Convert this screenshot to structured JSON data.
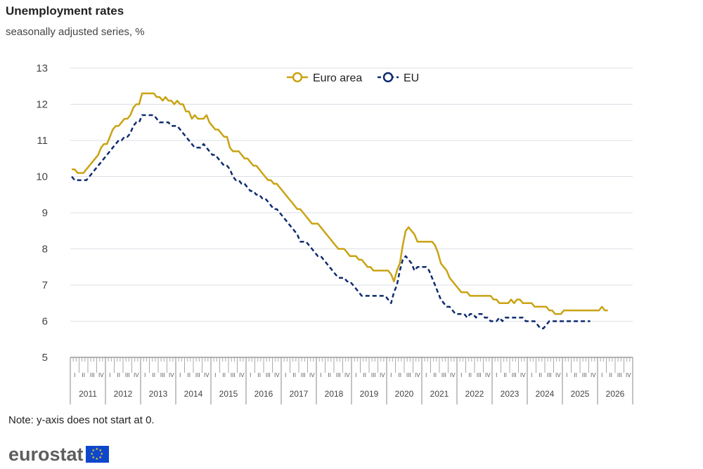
{
  "header": {
    "title": "Unemployment rates",
    "subtitle": "seasonally adjusted series, %"
  },
  "footer": {
    "note": "Note: y-axis does not start at 0.",
    "logo_text": "eurostat"
  },
  "colors": {
    "euro_area": "#c9a312",
    "eu": "#0e2c6e",
    "grid": "#dcdfe6",
    "axis_text": "#444444"
  },
  "chart_data": {
    "type": "line",
    "title": "Unemployment rates",
    "subtitle": "seasonally adjusted series, %",
    "ylim": [
      5,
      13
    ],
    "yticks": [
      5,
      6,
      7,
      8,
      9,
      10,
      11,
      12,
      13
    ],
    "grid": true,
    "legend_position": "top-center",
    "quarter_labels": [
      "I",
      "II",
      "III",
      "IV"
    ],
    "years": [
      "2011",
      "2012",
      "2013",
      "2014",
      "2015",
      "2016",
      "2017",
      "2018",
      "2019",
      "2020",
      "2021",
      "2022",
      "2023",
      "2024",
      "2025",
      "2026"
    ],
    "x_start": "2011-01",
    "series": [
      {
        "name": "Euro area",
        "style": "solid",
        "color": "#c9a312",
        "values": [
          10.2,
          10.2,
          10.1,
          10.1,
          10.1,
          10.2,
          10.3,
          10.4,
          10.5,
          10.6,
          10.8,
          10.9,
          10.9,
          11.1,
          11.3,
          11.4,
          11.4,
          11.5,
          11.6,
          11.6,
          11.7,
          11.9,
          12.0,
          12.0,
          12.3,
          12.3,
          12.3,
          12.3,
          12.3,
          12.2,
          12.2,
          12.1,
          12.2,
          12.1,
          12.1,
          12.0,
          12.1,
          12.0,
          12.0,
          11.8,
          11.8,
          11.6,
          11.7,
          11.6,
          11.6,
          11.6,
          11.7,
          11.5,
          11.4,
          11.3,
          11.3,
          11.2,
          11.1,
          11.1,
          10.8,
          10.7,
          10.7,
          10.7,
          10.6,
          10.5,
          10.5,
          10.4,
          10.3,
          10.3,
          10.2,
          10.1,
          10.0,
          9.9,
          9.9,
          9.8,
          9.8,
          9.7,
          9.6,
          9.5,
          9.4,
          9.3,
          9.2,
          9.1,
          9.1,
          9.0,
          8.9,
          8.8,
          8.7,
          8.7,
          8.7,
          8.6,
          8.5,
          8.4,
          8.3,
          8.2,
          8.1,
          8.0,
          8.0,
          8.0,
          7.9,
          7.8,
          7.8,
          7.8,
          7.7,
          7.7,
          7.6,
          7.5,
          7.5,
          7.4,
          7.4,
          7.4,
          7.4,
          7.4,
          7.4,
          7.3,
          7.1,
          7.4,
          7.6,
          8.1,
          8.5,
          8.6,
          8.5,
          8.4,
          8.2,
          8.2,
          8.2,
          8.2,
          8.2,
          8.2,
          8.1,
          7.9,
          7.6,
          7.5,
          7.4,
          7.2,
          7.1,
          7.0,
          6.9,
          6.8,
          6.8,
          6.8,
          6.7,
          6.7,
          6.7,
          6.7,
          6.7,
          6.7,
          6.7,
          6.7,
          6.6,
          6.6,
          6.5,
          6.5,
          6.5,
          6.5,
          6.6,
          6.5,
          6.6,
          6.6,
          6.5,
          6.5,
          6.5,
          6.5,
          6.4,
          6.4,
          6.4,
          6.4,
          6.4,
          6.3,
          6.3,
          6.2,
          6.2,
          6.2,
          6.3,
          6.3,
          6.3,
          6.3,
          6.3,
          6.3,
          6.3,
          6.3,
          6.3,
          6.3,
          6.3,
          6.3,
          6.3,
          6.4,
          6.3,
          6.3
        ]
      },
      {
        "name": "EU",
        "style": "dashed",
        "color": "#0e2c6e",
        "values": [
          10.0,
          9.9,
          9.9,
          9.9,
          9.9,
          9.9,
          10.0,
          10.1,
          10.2,
          10.3,
          10.4,
          10.5,
          10.6,
          10.7,
          10.8,
          10.9,
          11.0,
          11.0,
          11.1,
          11.1,
          11.2,
          11.4,
          11.5,
          11.5,
          11.7,
          11.7,
          11.7,
          11.7,
          11.7,
          11.6,
          11.5,
          11.5,
          11.5,
          11.5,
          11.4,
          11.4,
          11.4,
          11.3,
          11.2,
          11.1,
          11.0,
          10.9,
          10.8,
          10.8,
          10.8,
          10.9,
          10.8,
          10.7,
          10.6,
          10.6,
          10.5,
          10.4,
          10.3,
          10.3,
          10.2,
          10.0,
          9.9,
          9.9,
          9.8,
          9.8,
          9.7,
          9.6,
          9.6,
          9.5,
          9.5,
          9.4,
          9.4,
          9.3,
          9.2,
          9.1,
          9.1,
          9.0,
          8.9,
          8.8,
          8.7,
          8.6,
          8.5,
          8.4,
          8.2,
          8.2,
          8.2,
          8.1,
          8.0,
          7.9,
          7.8,
          7.8,
          7.7,
          7.6,
          7.5,
          7.4,
          7.3,
          7.2,
          7.2,
          7.2,
          7.1,
          7.1,
          7.0,
          6.9,
          6.8,
          6.7,
          6.7,
          6.7,
          6.7,
          6.7,
          6.7,
          6.7,
          6.7,
          6.7,
          6.6,
          6.5,
          6.8,
          7.0,
          7.4,
          7.7,
          7.8,
          7.7,
          7.6,
          7.4,
          7.5,
          7.5,
          7.5,
          7.5,
          7.4,
          7.2,
          7.0,
          6.8,
          6.6,
          6.5,
          6.4,
          6.4,
          6.3,
          6.2,
          6.2,
          6.2,
          6.2,
          6.1,
          6.2,
          6.2,
          6.1,
          6.2,
          6.2,
          6.1,
          6.1,
          6.0,
          6.0,
          6.0,
          6.1,
          6.0,
          6.1,
          6.1,
          6.1,
          6.1,
          6.1,
          6.1,
          6.1,
          6.0,
          6.0,
          6.0,
          6.0,
          5.9,
          5.8,
          5.8,
          5.9,
          6.0,
          6.0,
          6.0,
          6.0,
          6.0,
          6.0,
          6.0,
          6.0,
          6.0,
          6.0,
          6.0,
          6.0,
          6.0,
          6.0,
          6.0
        ]
      }
    ]
  }
}
